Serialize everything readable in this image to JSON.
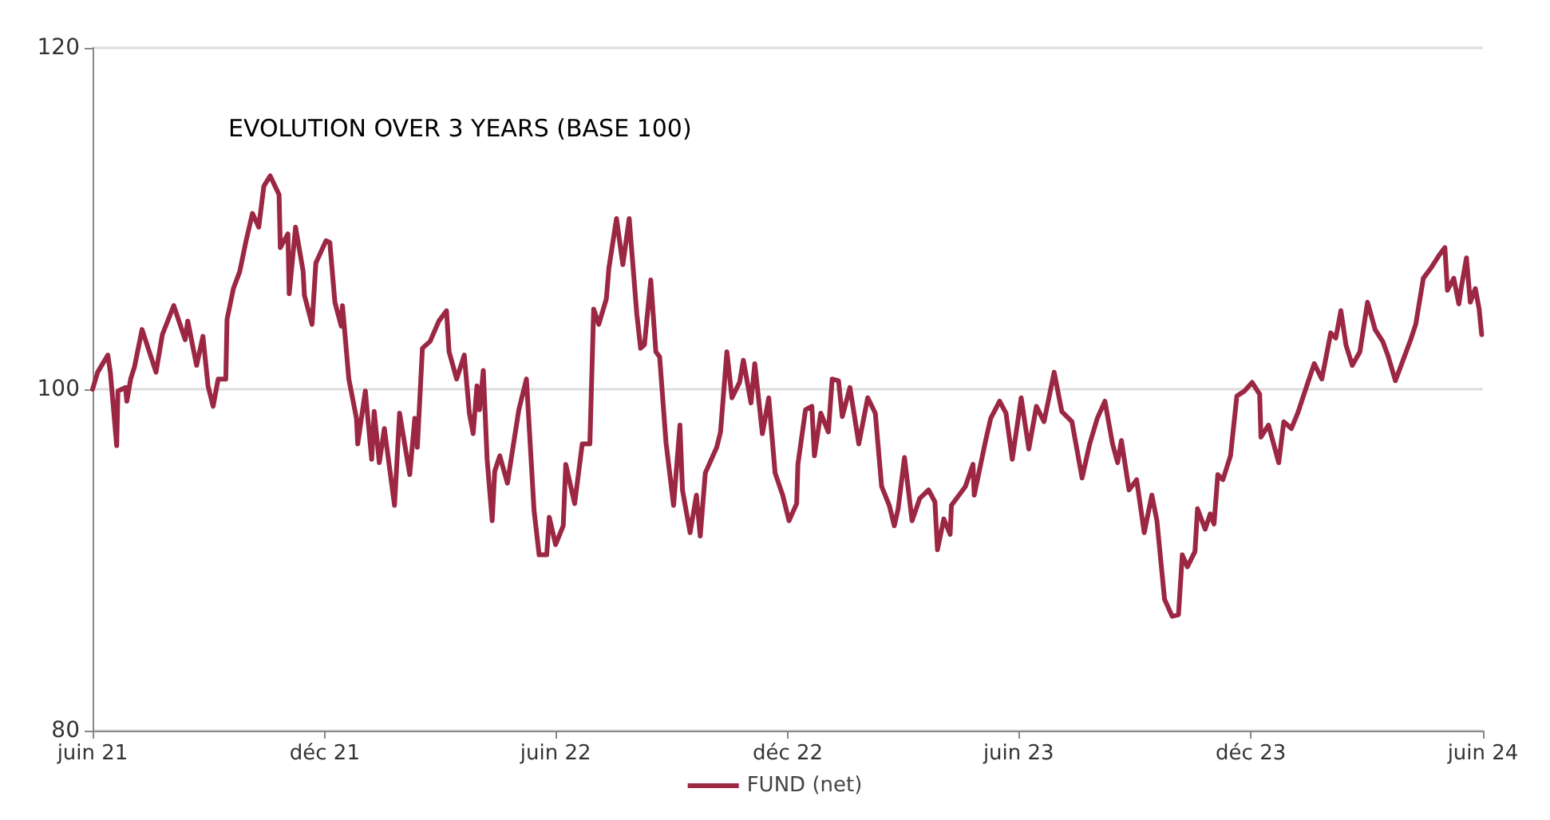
{
  "chart_data": {
    "type": "line",
    "title": "EVOLUTION OVER 3 YEARS (BASE 100)",
    "x": [
      "2021-06-01",
      "2021-06-05",
      "2021-06-09",
      "2021-06-13",
      "2021-06-15",
      "2021-06-20",
      "2021-06-21",
      "2021-06-27",
      "2021-06-28",
      "2021-07-01",
      "2021-07-04",
      "2021-07-10",
      "2021-07-21",
      "2021-07-26",
      "2021-08-04",
      "2021-08-13",
      "2021-08-15",
      "2021-08-22",
      "2021-08-27",
      "2021-08-31",
      "2021-09-04",
      "2021-09-08",
      "2021-09-14",
      "2021-09-15",
      "2021-09-20",
      "2021-09-25",
      "2021-09-30",
      "2021-10-05",
      "2021-10-10",
      "2021-10-14",
      "2021-10-19",
      "2021-10-26",
      "2021-10-27",
      "2021-11-02",
      "2021-11-03",
      "2021-11-08",
      "2021-11-14",
      "2021-11-15",
      "2021-11-21",
      "2021-11-24",
      "2021-12-02",
      "2021-12-05",
      "2021-12-09",
      "2021-12-14",
      "2021-12-15",
      "2021-12-20",
      "2021-12-26",
      "2021-12-27",
      "2022-01-02",
      "2022-01-07",
      "2022-01-09",
      "2022-01-13",
      "2022-01-17",
      "2022-01-25",
      "2022-01-29",
      "2022-02-06",
      "2022-02-10",
      "2022-02-12",
      "2022-02-16",
      "2022-02-22",
      "2022-03-01",
      "2022-03-07",
      "2022-03-09",
      "2022-03-15",
      "2022-03-21",
      "2022-03-25",
      "2022-03-28",
      "2022-03-31",
      "2022-04-02",
      "2022-04-05",
      "2022-04-08",
      "2022-04-12",
      "2022-04-14",
      "2022-04-18",
      "2022-04-24",
      "2022-05-03",
      "2022-05-09",
      "2022-05-15",
      "2022-05-19",
      "2022-05-25",
      "2022-05-27",
      "2022-06-01",
      "2022-06-07",
      "2022-06-09",
      "2022-06-16",
      "2022-06-22",
      "2022-06-28",
      "2022-07-01",
      "2022-07-05",
      "2022-07-11",
      "2022-07-13",
      "2022-07-19",
      "2022-07-24",
      "2022-07-29",
      "2022-08-04",
      "2022-08-07",
      "2022-08-10",
      "2022-08-15",
      "2022-08-19",
      "2022-08-22",
      "2022-08-27",
      "2022-09-02",
      "2022-09-07",
      "2022-09-09",
      "2022-09-15",
      "2022-09-20",
      "2022-09-23",
      "2022-09-27",
      "2022-10-06",
      "2022-10-09",
      "2022-10-14",
      "2022-10-18",
      "2022-10-24",
      "2022-10-27",
      "2022-11-02",
      "2022-11-05",
      "2022-11-11",
      "2022-11-16",
      "2022-11-21",
      "2022-11-27",
      "2022-12-02",
      "2022-12-08",
      "2022-12-09",
      "2022-12-15",
      "2022-12-20",
      "2022-12-22",
      "2022-12-27",
      "2023-01-02",
      "2023-01-05",
      "2023-01-10",
      "2023-01-13",
      "2023-01-19",
      "2023-01-22",
      "2023-01-26",
      "2023-02-02",
      "2023-02-08",
      "2023-02-13",
      "2023-02-19",
      "2023-02-23",
      "2023-02-26",
      "2023-03-03",
      "2023-03-09",
      "2023-03-15",
      "2023-03-22",
      "2023-03-27",
      "2023-03-29",
      "2023-04-03",
      "2023-04-08",
      "2023-04-09",
      "2023-04-20",
      "2023-04-26",
      "2023-04-27",
      "2023-05-06",
      "2023-05-10",
      "2023-05-17",
      "2023-05-22",
      "2023-05-27",
      "2023-06-03",
      "2023-06-09",
      "2023-06-15",
      "2023-06-21",
      "2023-06-29",
      "2023-07-05",
      "2023-07-13",
      "2023-07-21",
      "2023-07-27",
      "2023-08-02",
      "2023-08-08",
      "2023-08-14",
      "2023-08-18",
      "2023-08-21",
      "2023-08-27",
      "2023-09-02",
      "2023-09-08",
      "2023-09-14",
      "2023-09-18",
      "2023-09-24",
      "2023-09-30",
      "2023-10-05",
      "2023-10-08",
      "2023-10-12",
      "2023-10-18",
      "2023-10-20",
      "2023-10-26",
      "2023-10-30",
      "2023-11-02",
      "2023-11-05",
      "2023-11-09",
      "2023-11-15",
      "2023-11-20",
      "2023-11-26",
      "2023-12-02",
      "2023-12-08",
      "2023-12-09",
      "2023-12-15",
      "2023-12-23",
      "2023-12-27",
      "2024-01-02",
      "2024-01-07",
      "2024-01-15",
      "2024-01-20",
      "2024-01-26",
      "2024-02-02",
      "2024-02-06",
      "2024-02-10",
      "2024-02-14",
      "2024-02-19",
      "2024-02-25",
      "2024-03-02",
      "2024-03-08",
      "2024-03-14",
      "2024-03-18",
      "2024-03-24",
      "2024-03-30",
      "2024-04-05",
      "2024-04-09",
      "2024-04-15",
      "2024-04-21",
      "2024-04-27",
      "2024-05-02",
      "2024-05-04",
      "2024-05-09",
      "2024-05-13",
      "2024-05-15",
      "2024-05-19",
      "2024-05-22",
      "2024-05-26",
      "2024-05-29",
      "2024-05-31"
    ],
    "series": [
      {
        "name": "FUND (net)",
        "color": "#9b2743",
        "values": [
          100,
          101.0,
          101.5,
          102.0,
          101.0,
          96.7,
          99.9,
          100.1,
          99.3,
          100.6,
          101.3,
          103.5,
          101.0,
          103.2,
          104.9,
          102.9,
          104.0,
          101.4,
          103.1,
          100.2,
          99.0,
          100.6,
          100.6,
          104.1,
          105.9,
          106.9,
          108.7,
          110.3,
          109.5,
          111.9,
          112.5,
          111.4,
          108.3,
          109.1,
          105.6,
          109.5,
          106.9,
          105.5,
          103.8,
          107.4,
          108.7,
          108.6,
          105.1,
          103.7,
          104.9,
          100.6,
          98.3,
          96.8,
          99.9,
          95.9,
          98.7,
          95.7,
          97.7,
          93.2,
          98.6,
          95.0,
          98.3,
          96.6,
          102.4,
          102.8,
          104.0,
          104.6,
          102.2,
          100.6,
          102.0,
          98.6,
          97.4,
          100.2,
          98.8,
          101.1,
          95.9,
          92.3,
          95.2,
          96.1,
          94.5,
          98.8,
          100.6,
          92.9,
          90.3,
          90.3,
          92.5,
          90.9,
          92.0,
          95.6,
          93.3,
          96.8,
          96.8,
          104.7,
          103.8,
          105.3,
          107.1,
          110.0,
          107.3,
          110.0,
          104.4,
          102.4,
          102.6,
          106.4,
          102.2,
          101.9,
          96.9,
          93.2,
          97.9,
          94.1,
          91.6,
          93.8,
          91.4,
          95.1,
          96.6,
          97.5,
          102.2,
          99.5,
          100.4,
          101.7,
          99.2,
          101.5,
          97.4,
          99.5,
          95.1,
          93.8,
          92.3,
          93.3,
          95.6,
          98.8,
          99.0,
          96.1,
          98.6,
          97.5,
          100.6,
          100.5,
          98.4,
          100.1,
          98.7,
          96.8,
          99.5,
          98.6,
          94.3,
          93.2,
          92.0,
          93.0,
          96.0,
          92.3,
          93.6,
          94.1,
          93.4,
          90.6,
          92.4,
          91.5,
          93.2,
          94.3,
          95.6,
          93.8,
          97.0,
          98.3,
          99.3,
          98.6,
          95.9,
          99.5,
          96.5,
          99.0,
          98.1,
          101.0,
          98.7,
          98.1,
          94.8,
          96.8,
          98.3,
          99.3,
          96.8,
          95.7,
          97.0,
          94.1,
          94.7,
          91.6,
          93.8,
          92.3,
          87.7,
          86.7,
          86.8,
          90.3,
          89.6,
          90.5,
          93.0,
          91.8,
          92.7,
          92.1,
          95.0,
          94.7,
          96.1,
          99.6,
          99.9,
          100.4,
          99.7,
          97.2,
          97.9,
          95.7,
          98.1,
          97.7,
          98.6,
          100.4,
          101.5,
          100.6,
          103.3,
          103.0,
          104.6,
          102.6,
          101.4,
          102.2,
          105.1,
          103.5,
          102.8,
          102.0,
          100.5,
          101.7,
          102.9,
          103.8,
          106.5,
          107.1,
          107.8,
          108.3,
          105.8,
          106.5,
          105.0,
          106.0,
          107.7,
          105.1,
          105.9,
          104.7,
          103.2
        ]
      }
    ],
    "xlim": [
      "2021-06-01",
      "2024-06-01"
    ],
    "xticks": [
      {
        "value": "2021-06-01",
        "label": "juin 21"
      },
      {
        "value": "2021-12-01",
        "label": "déc 21"
      },
      {
        "value": "2022-06-01",
        "label": "juin 22"
      },
      {
        "value": "2022-12-01",
        "label": "déc 22"
      },
      {
        "value": "2023-06-01",
        "label": "juin 23"
      },
      {
        "value": "2023-12-01",
        "label": "déc 23"
      },
      {
        "value": "2024-06-01",
        "label": "juin 24"
      }
    ],
    "ylim": [
      80,
      120
    ],
    "yticks": [
      80,
      100,
      120
    ],
    "grid": "y",
    "legend": "bottom",
    "marker": "none",
    "line_style": "solid"
  }
}
